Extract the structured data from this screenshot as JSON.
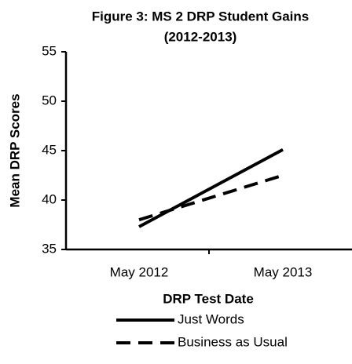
{
  "chart_data": {
    "type": "line",
    "title": [
      "Figure 3: MS 2 DRP Student Gains",
      "(2012-2013)"
    ],
    "x_label": "DRP Test Date",
    "y_label": "Mean DRP Scores",
    "categories": [
      "May 2012",
      "May 2013"
    ],
    "series": [
      {
        "name": "Just Words",
        "color": "#000000",
        "dash": "solid",
        "values": [
          37.3,
          45.1
        ]
      },
      {
        "name": "Business as Usual",
        "color": "#000000",
        "dash": "dashed",
        "values": [
          38.0,
          42.5
        ]
      }
    ],
    "ylim": [
      35,
      55
    ],
    "yticks": [
      35,
      40,
      45,
      50,
      55
    ],
    "grid": false,
    "legend": "bottom"
  }
}
